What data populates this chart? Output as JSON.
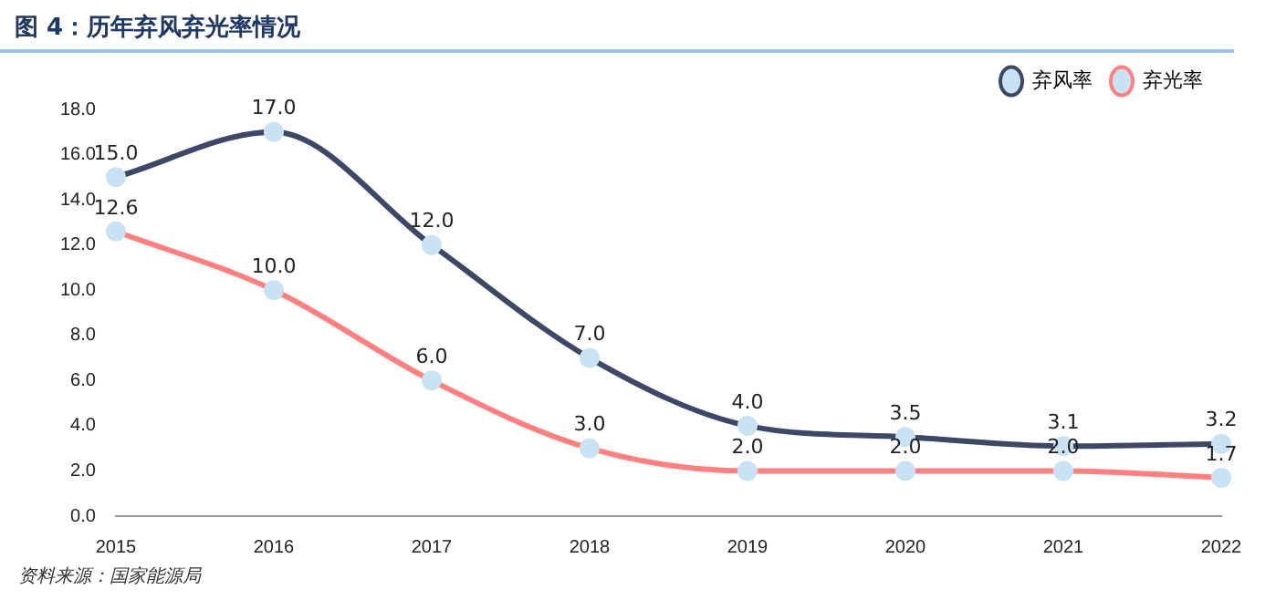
{
  "chart_data": {
    "type": "line",
    "title": "图 4：历年弃风弃光率情况",
    "annotations": [
      "资料来源：国家能源局"
    ],
    "categories": [
      "2015",
      "2016",
      "2017",
      "2018",
      "2019",
      "2020",
      "2021",
      "2022"
    ],
    "series": [
      {
        "name": "弃风率",
        "color": "#3d4866",
        "values": [
          15.0,
          17.0,
          12.0,
          7.0,
          4.0,
          3.5,
          3.1,
          3.2
        ],
        "value_labels": [
          "15.0",
          "17.0",
          "12.0",
          "7.0",
          "4.0",
          "3.5",
          "3.1",
          "3.2"
        ]
      },
      {
        "name": "弃光率",
        "color": "#ff8080",
        "values": [
          12.6,
          10.0,
          6.0,
          3.0,
          2.0,
          2.0,
          2.0,
          1.7
        ],
        "value_labels": [
          "12.6",
          "10.0",
          "6.0",
          "3.0",
          "2.0",
          "2.0",
          "2.0",
          "1.7"
        ]
      }
    ],
    "ylim": [
      0,
      18
    ],
    "yticks": [
      {
        "value": 0,
        "label": "0.0"
      },
      {
        "value": 2,
        "label": "2.0"
      },
      {
        "value": 4,
        "label": "4.0"
      },
      {
        "value": 6,
        "label": "6.0"
      },
      {
        "value": 8,
        "label": "8.0"
      },
      {
        "value": 10,
        "label": "10.0"
      },
      {
        "value": 12,
        "label": "12.0"
      },
      {
        "value": 14,
        "label": "14.0"
      },
      {
        "value": 16,
        "label": "16.0"
      },
      {
        "value": 18,
        "label": "18.0"
      }
    ],
    "grid": false,
    "legend": "top right",
    "marker": "circle",
    "line_style": "solid"
  }
}
